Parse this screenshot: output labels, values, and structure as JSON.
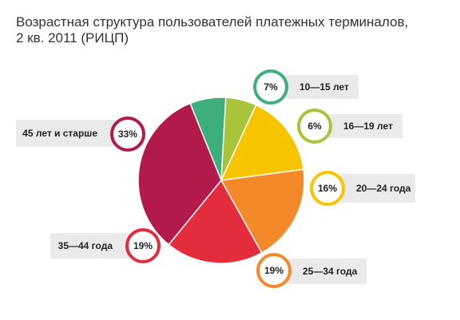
{
  "title": {
    "line1": "Возрастная структура пользователей платежных терминалов,",
    "line2": "2 кв. 2011 (РИЦП)"
  },
  "chart_data": {
    "type": "pie",
    "title": "Возрастная структура пользователей платежных терминалов, 2 кв. 2011 (РИЦП)",
    "categories": [
      "10—15 лет",
      "16—19 лет",
      "20—24 года",
      "25—34 года",
      "35—44 года",
      "45 лет и старше"
    ],
    "values": [
      7,
      6,
      16,
      19,
      19,
      33
    ],
    "value_labels": [
      "7%",
      "6%",
      "16%",
      "19%",
      "19%",
      "33%"
    ],
    "colors": [
      "#3fae7d",
      "#a8c43a",
      "#f7c400",
      "#f4892a",
      "#e42d3c",
      "#b31a4c"
    ],
    "start_angle_deg": -22
  }
}
